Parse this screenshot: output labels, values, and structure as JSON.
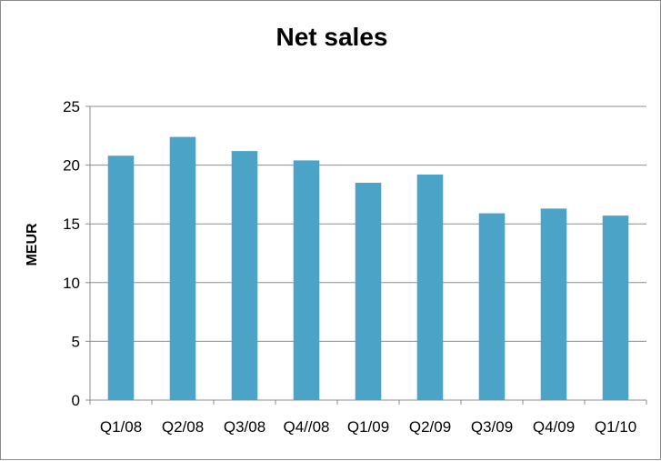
{
  "chart_data": {
    "type": "bar",
    "title": "Net sales",
    "xlabel": "",
    "ylabel": "MEUR",
    "categories": [
      "Q1/08",
      "Q2/08",
      "Q3/08",
      "Q4//08",
      "Q1/09",
      "Q2/09",
      "Q3/09",
      "Q4/09",
      "Q1/10"
    ],
    "values": [
      20.8,
      22.4,
      21.2,
      20.4,
      18.5,
      19.2,
      15.9,
      16.3,
      15.7
    ],
    "ylim": [
      0,
      25
    ],
    "yticks": [
      "0",
      "5",
      "10",
      "15",
      "20",
      "25"
    ],
    "grid": true,
    "legend": "none",
    "bar_color": "#4BA3C8"
  }
}
